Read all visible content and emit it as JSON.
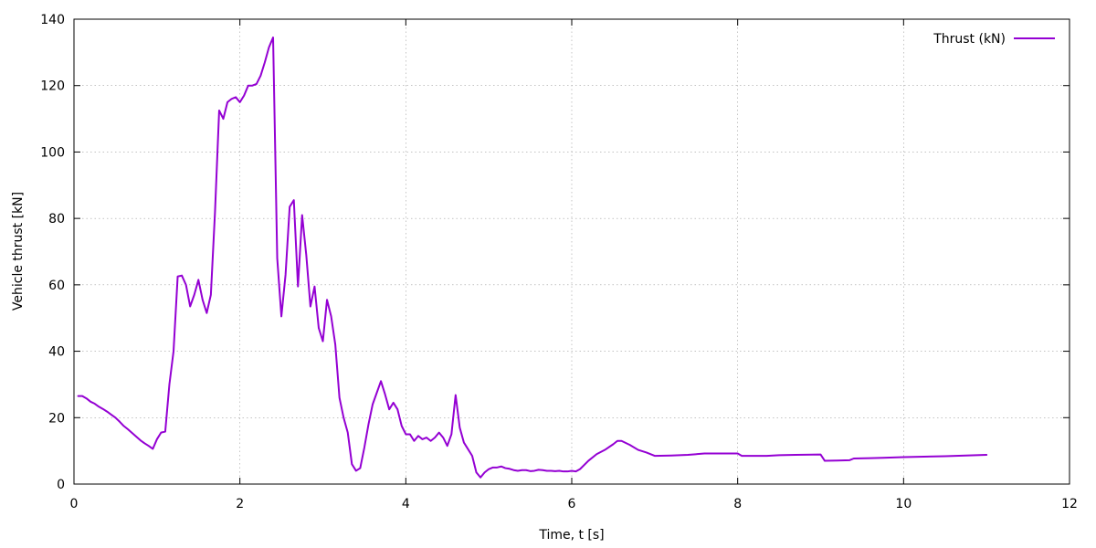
{
  "chart_data": {
    "type": "line",
    "xlabel": "Time, t [s]",
    "ylabel": "Vehicle thrust [kN]",
    "xlim": [
      0,
      12
    ],
    "ylim": [
      0,
      140
    ],
    "xticks": [
      0,
      2,
      4,
      6,
      8,
      10,
      12
    ],
    "yticks": [
      0,
      20,
      40,
      60,
      80,
      100,
      120,
      140
    ],
    "grid": true,
    "legend_position": "top-right",
    "series": [
      {
        "name": "Thrust (kN)",
        "color": "#9400d3",
        "x": [
          0.05,
          0.1,
          0.15,
          0.2,
          0.25,
          0.3,
          0.35,
          0.4,
          0.45,
          0.5,
          0.55,
          0.6,
          0.65,
          0.7,
          0.75,
          0.8,
          0.85,
          0.9,
          0.95,
          1.0,
          1.05,
          1.1,
          1.15,
          1.2,
          1.25,
          1.3,
          1.35,
          1.4,
          1.45,
          1.5,
          1.55,
          1.6,
          1.65,
          1.7,
          1.75,
          1.8,
          1.85,
          1.9,
          1.95,
          2.0,
          2.05,
          2.1,
          2.15,
          2.2,
          2.25,
          2.3,
          2.35,
          2.4,
          2.45,
          2.5,
          2.55,
          2.6,
          2.65,
          2.7,
          2.75,
          2.8,
          2.85,
          2.9,
          2.95,
          3.0,
          3.05,
          3.1,
          3.15,
          3.2,
          3.25,
          3.3,
          3.35,
          3.4,
          3.45,
          3.5,
          3.55,
          3.6,
          3.65,
          3.7,
          3.75,
          3.8,
          3.85,
          3.9,
          3.95,
          4.0,
          4.05,
          4.1,
          4.15,
          4.2,
          4.25,
          4.3,
          4.35,
          4.4,
          4.45,
          4.5,
          4.55,
          4.6,
          4.65,
          4.7,
          4.75,
          4.8,
          4.85,
          4.9,
          4.95,
          5.0,
          5.05,
          5.1,
          5.15,
          5.2,
          5.25,
          5.3,
          5.35,
          5.4,
          5.45,
          5.5,
          5.55,
          5.6,
          5.65,
          5.7,
          5.75,
          5.8,
          5.85,
          5.9,
          5.95,
          6.0,
          6.05,
          6.1,
          6.2,
          6.3,
          6.4,
          6.5,
          6.55,
          6.6,
          6.7,
          6.8,
          6.9,
          7.0,
          7.2,
          7.4,
          7.6,
          7.8,
          8.0,
          8.05,
          8.2,
          8.35,
          8.5,
          8.7,
          9.0,
          9.05,
          9.2,
          9.35,
          9.4,
          9.6,
          9.75,
          10.0,
          10.5,
          11.0
        ],
        "values": [
          26.5,
          26.5,
          25.8,
          24.8,
          24.2,
          23.3,
          22.6,
          21.8,
          20.9,
          20.0,
          18.8,
          17.5,
          16.5,
          15.4,
          14.3,
          13.2,
          12.3,
          11.5,
          10.6,
          13.5,
          15.5,
          15.8,
          30.0,
          40.0,
          62.5,
          62.8,
          60.0,
          53.5,
          57.0,
          61.5,
          55.5,
          51.5,
          57.0,
          82.0,
          112.5,
          110.0,
          115.0,
          116.0,
          116.5,
          115.0,
          117.0,
          120.0,
          120.0,
          120.5,
          123.0,
          127.0,
          131.5,
          134.5,
          68.0,
          50.5,
          63.0,
          83.5,
          85.5,
          59.5,
          81.0,
          69.0,
          53.5,
          59.5,
          47.0,
          43.0,
          55.5,
          50.5,
          42.0,
          26.0,
          20.0,
          15.5,
          6.0,
          4.0,
          4.8,
          11.0,
          18.0,
          24.0,
          27.5,
          31.0,
          27.0,
          22.5,
          24.5,
          22.5,
          17.5,
          15.0,
          15.0,
          13.0,
          14.5,
          13.5,
          14.0,
          13.0,
          14.0,
          15.5,
          14.0,
          11.5,
          15.0,
          26.8,
          17.0,
          12.5,
          10.5,
          8.5,
          3.5,
          2.0,
          3.5,
          4.5,
          5.0,
          5.0,
          5.3,
          4.8,
          4.6,
          4.2,
          4.0,
          4.2,
          4.2,
          3.9,
          4.0,
          4.3,
          4.2,
          4.0,
          4.0,
          3.9,
          4.0,
          3.8,
          3.8,
          4.0,
          3.8,
          4.5,
          7.0,
          9.0,
          10.3,
          12.0,
          13.0,
          13.0,
          11.8,
          10.3,
          9.5,
          8.5,
          8.6,
          8.8,
          9.2,
          9.2,
          9.2,
          8.5,
          8.5,
          8.5,
          8.7,
          8.8,
          8.9,
          7.0,
          7.1,
          7.2,
          7.7,
          7.8,
          7.9,
          8.1,
          8.4,
          8.8
        ]
      }
    ]
  }
}
